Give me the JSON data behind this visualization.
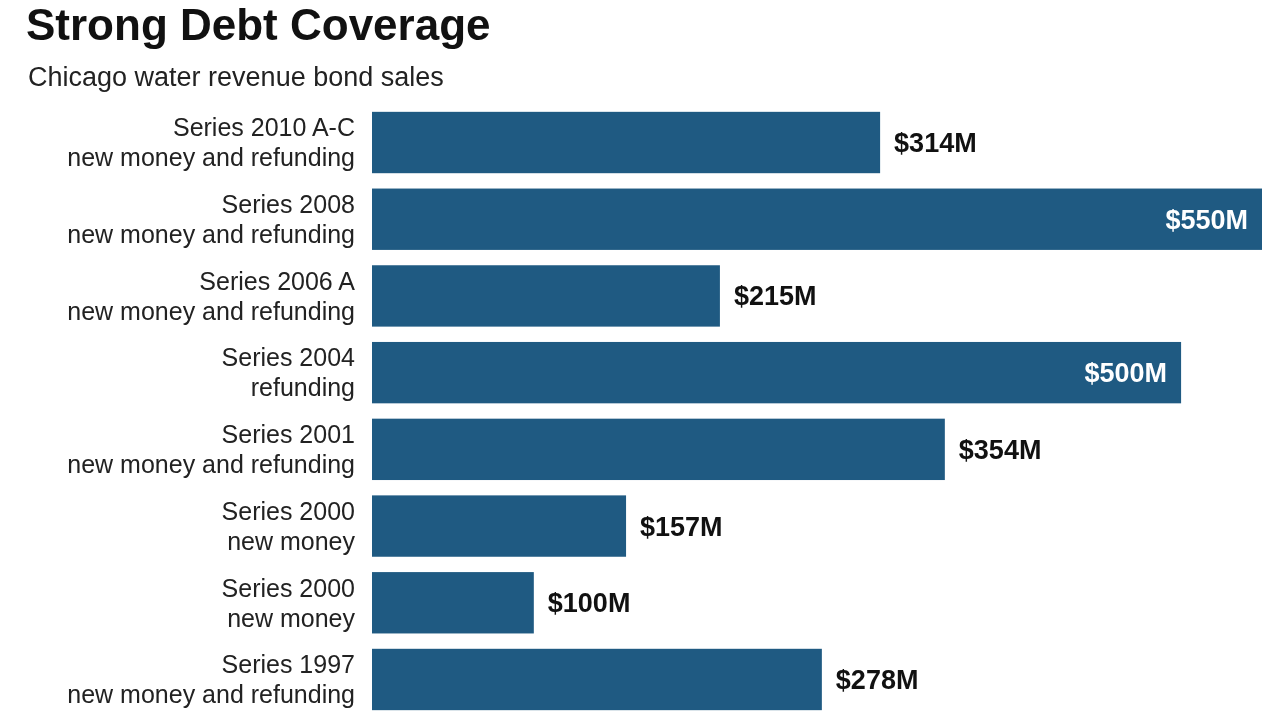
{
  "chart_data": {
    "type": "bar",
    "orientation": "horizontal",
    "title": "Strong Debt Coverage",
    "subtitle": "Chicago water revenue bond sales",
    "categories": [
      "Series 2010 A-C\nnew money and refunding",
      "Series 2008\nnew money and refunding",
      "Series 2006 A\nnew money and refunding",
      "Series 2004\nrefunding",
      "Series 2001\nnew money and refunding",
      "Series 2000\nnew money",
      "Series 2000\nnew money",
      "Series 1997\nnew money and refunding"
    ],
    "values": [
      314,
      550,
      215,
      500,
      354,
      157,
      100,
      278
    ],
    "value_labels": [
      "$314M",
      "$550M",
      "$215M",
      "$500M",
      "$354M",
      "$157M",
      "$100M",
      "$278M"
    ],
    "color": "#1f5a82"
  }
}
